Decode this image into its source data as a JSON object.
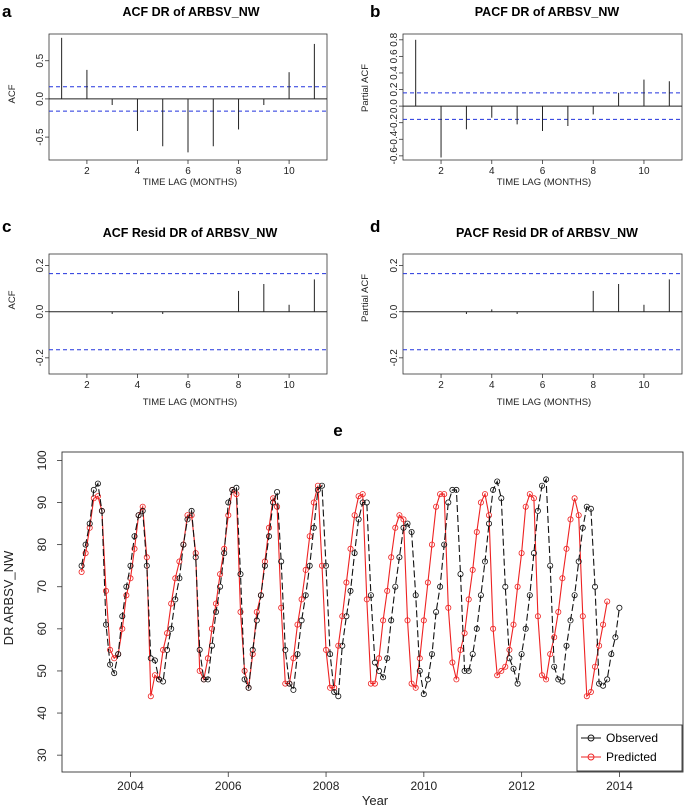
{
  "chart_data": [
    {
      "panel": "a",
      "type": "bar",
      "title": "ACF DR of ARBSV_NW",
      "xlabel": "TIME LAG (MONTHS)",
      "ylabel": "ACF",
      "xlim": [
        0.5,
        11.5
      ],
      "ylim": [
        -0.8,
        0.85
      ],
      "xticks": [
        2,
        4,
        6,
        8,
        10
      ],
      "yticks": [
        -0.5,
        0.0,
        0.5
      ],
      "lags": [
        1,
        2,
        3,
        4,
        5,
        6,
        7,
        8,
        9,
        10,
        11
      ],
      "values": [
        0.8,
        0.38,
        -0.08,
        -0.42,
        -0.62,
        -0.7,
        -0.62,
        -0.4,
        -0.08,
        0.35,
        0.72
      ],
      "ci": 0.16
    },
    {
      "panel": "b",
      "type": "bar",
      "title": "PACF DR of ARBSV_NW",
      "xlabel": "TIME LAG (MONTHS)",
      "ylabel": "Partial ACF",
      "xlim": [
        0.5,
        11.5
      ],
      "ylim": [
        -0.65,
        0.87
      ],
      "xticks": [
        2,
        4,
        6,
        8,
        10
      ],
      "yticks": [
        -0.6,
        -0.4,
        -0.2,
        0.0,
        0.2,
        0.4,
        0.6,
        0.8
      ],
      "lags": [
        1,
        2,
        3,
        4,
        5,
        6,
        7,
        8,
        9,
        10,
        11
      ],
      "values": [
        0.8,
        -0.62,
        -0.28,
        -0.14,
        -0.22,
        -0.3,
        -0.24,
        -0.1,
        0.16,
        0.32,
        0.3
      ],
      "ci": 0.16
    },
    {
      "panel": "c",
      "type": "bar",
      "title": "ACF Resid DR of ARBSV_NW",
      "xlabel": "TIME LAG (MONTHS)",
      "ylabel": "ACF",
      "xlim": [
        0.5,
        11.5
      ],
      "ylim": [
        -0.27,
        0.25
      ],
      "xticks": [
        2,
        4,
        6,
        8,
        10
      ],
      "yticks": [
        -0.2,
        0.0,
        0.2
      ],
      "lags": [
        1,
        2,
        3,
        4,
        5,
        6,
        7,
        8,
        9,
        10,
        11
      ],
      "values": [
        0.0,
        0.0,
        -0.01,
        0.0,
        -0.01,
        0.0,
        0.0,
        0.09,
        0.12,
        0.03,
        0.14
      ],
      "ci": 0.165
    },
    {
      "panel": "d",
      "type": "bar",
      "title": "PACF Resid DR of ARBSV_NW",
      "xlabel": "TIME LAG (MONTHS)",
      "ylabel": "Partial ACF",
      "xlim": [
        0.5,
        11.5
      ],
      "ylim": [
        -0.27,
        0.25
      ],
      "xticks": [
        2,
        4,
        6,
        8,
        10
      ],
      "yticks": [
        -0.2,
        0.0,
        0.2
      ],
      "lags": [
        1,
        2,
        3,
        4,
        5,
        6,
        7,
        8,
        9,
        10,
        11
      ],
      "values": [
        0.0,
        0.0,
        -0.01,
        0.01,
        -0.01,
        0.0,
        0.0,
        0.09,
        0.12,
        0.03,
        0.14
      ],
      "ci": 0.165
    },
    {
      "panel": "e",
      "type": "line",
      "title": "",
      "xlabel": "Year",
      "ylabel": "DR ARBSV_NW",
      "xlim": [
        2002.6,
        2015.3
      ],
      "ylim": [
        26,
        102
      ],
      "xticks": [
        2004,
        2006,
        2008,
        2010,
        2012,
        2014
      ],
      "yticks": [
        30,
        40,
        50,
        60,
        70,
        80,
        90,
        100
      ],
      "start_year": 2003,
      "freq": 12,
      "series": [
        {
          "name": "Observed",
          "color": "#111111",
          "values": [
            75,
            80,
            85,
            93,
            94.5,
            88,
            61,
            51.5,
            49.5,
            54,
            63,
            70,
            75,
            82,
            87,
            88,
            75,
            53,
            52.5,
            48,
            47.5,
            55,
            60,
            67,
            72,
            80,
            86,
            88,
            77,
            55,
            48,
            48,
            56,
            64,
            70,
            78,
            90,
            93,
            93.5,
            73,
            48,
            46,
            55,
            62,
            68,
            75,
            82,
            90,
            92.5,
            76,
            55,
            47,
            45.5,
            54,
            62,
            68,
            75,
            84,
            93,
            94,
            75,
            54,
            45,
            44,
            56,
            63,
            69,
            78,
            86,
            90,
            90,
            68,
            52,
            50,
            48.5,
            53,
            62,
            70,
            77,
            84,
            85,
            83,
            68,
            50,
            44.5,
            48,
            54,
            64,
            70,
            80,
            90,
            93,
            93,
            73,
            50,
            50,
            54,
            60,
            68,
            76,
            85,
            93,
            95,
            91,
            70,
            53,
            50.5,
            47,
            54,
            60,
            68,
            78,
            88,
            94,
            95.5,
            75,
            51,
            48,
            47.5,
            56,
            62,
            68,
            76,
            84,
            89,
            88.5,
            70,
            47,
            46.5,
            48,
            54,
            58,
            65
          ]
        },
        {
          "name": "Predicted",
          "color": "#ee2222",
          "values": [
            73.5,
            78,
            84,
            91,
            91.5,
            88,
            69,
            55,
            53,
            54,
            60,
            68,
            72,
            79,
            87,
            89,
            77,
            44,
            49,
            48,
            55,
            59,
            66,
            72,
            76,
            80,
            87,
            87,
            78,
            50,
            48,
            53,
            60,
            66,
            73,
            79,
            87,
            93,
            92,
            64,
            50,
            46,
            54,
            64,
            68,
            76,
            84,
            91,
            89,
            65,
            47,
            47,
            53,
            61,
            67,
            74,
            82,
            90,
            94,
            75,
            55,
            46,
            46,
            56,
            63,
            71,
            79,
            87,
            91.5,
            92,
            67,
            47,
            47,
            53,
            62,
            69,
            77,
            84,
            87,
            86,
            62,
            47,
            46,
            53,
            62,
            71,
            80,
            89,
            92,
            92,
            65,
            52,
            48,
            55,
            59,
            67,
            74,
            83,
            90,
            92,
            87,
            60,
            49,
            50,
            51,
            55,
            61,
            70,
            78,
            89,
            92,
            91,
            63,
            49,
            48,
            54,
            58,
            64,
            72,
            79,
            86,
            91,
            87,
            63,
            44,
            45,
            51,
            56,
            61,
            66.5
          ]
        }
      ],
      "legend": "bottom-right"
    }
  ]
}
